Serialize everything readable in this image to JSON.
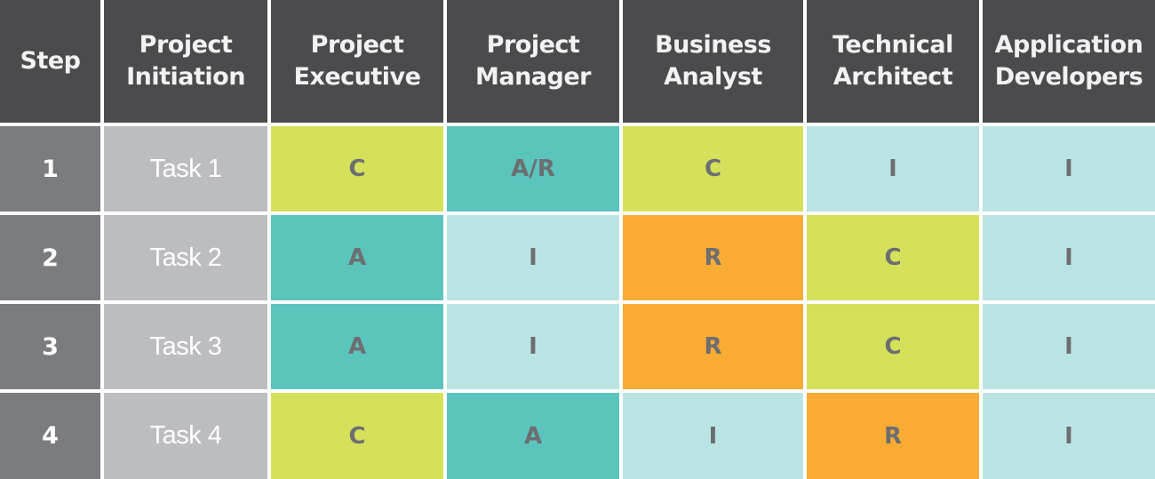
{
  "colors": {
    "header_bg": "#4b4b4d",
    "step_bg": "#7b7c80",
    "task_bg": "#bcbdc0",
    "A": "#5bc4bd",
    "A/R": "#5bc4bd",
    "R": "#f9ac34",
    "C": "#d5e05b",
    "I": "#bae4e4",
    "cell_text": "#6d6e71"
  },
  "chart_data": {
    "type": "table",
    "columns": [
      "Step",
      "Project\nInitiation",
      "Project\nExecutive",
      "Project\nManager",
      "Business\nAnalyst",
      "Technical\nArchitect",
      "Application\nDevelopers"
    ],
    "rows": [
      {
        "step": "1",
        "task": "Task 1",
        "values": [
          "C",
          "A/R",
          "C",
          "I",
          "I"
        ]
      },
      {
        "step": "2",
        "task": "Task 2",
        "values": [
          "A",
          "I",
          "R",
          "C",
          "I"
        ]
      },
      {
        "step": "3",
        "task": "Task 3",
        "values": [
          "A",
          "I",
          "R",
          "C",
          "I"
        ]
      },
      {
        "step": "4",
        "task": "Task 4",
        "values": [
          "C",
          "A",
          "I",
          "R",
          "I"
        ]
      }
    ]
  }
}
